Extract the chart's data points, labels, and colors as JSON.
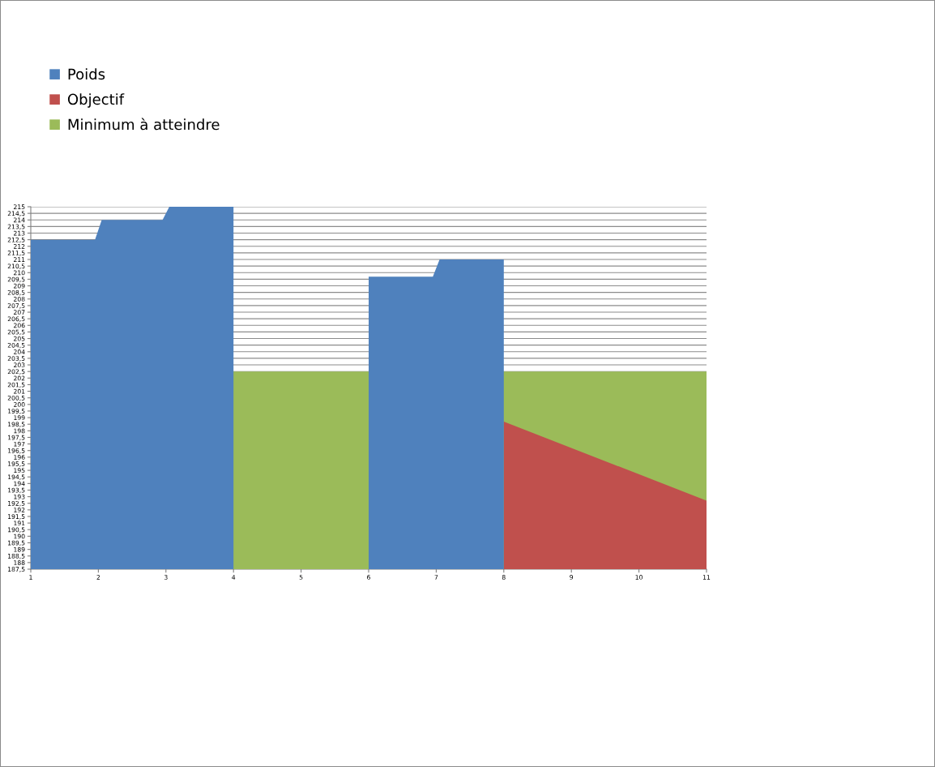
{
  "chart_data": {
    "type": "area",
    "series": [
      {
        "name": "Poids",
        "color": "#4f81bd",
        "x": [
          1,
          1.95,
          2.05,
          2.95,
          3.05,
          4,
          5,
          6,
          6.95,
          7.05,
          8
        ],
        "values": [
          212.5,
          212.5,
          214,
          214,
          215,
          215,
          null,
          209.7,
          209.7,
          211,
          211
        ]
      },
      {
        "name": "Objectif",
        "color": "#c0504d",
        "x": [
          8,
          11
        ],
        "values": [
          198.7,
          192.7
        ]
      },
      {
        "name": "Minimum à atteindre",
        "color": "#9bbb59",
        "x": [
          1,
          11
        ],
        "values": [
          202.5,
          202.5
        ]
      }
    ],
    "xlim": [
      1,
      11
    ],
    "xticks": [
      1,
      2,
      3,
      4,
      5,
      6,
      7,
      8,
      9,
      10,
      11
    ],
    "ylim": [
      187.5,
      215
    ],
    "yticks": [
      {
        "value": 187.5,
        "label": "187,5"
      },
      188,
      {
        "value": 188.5,
        "label": "188,5"
      },
      189,
      {
        "value": 189.5,
        "label": "189,5"
      },
      190,
      {
        "value": 190.5,
        "label": "190,5"
      },
      191,
      {
        "value": 191.5,
        "label": "191,5"
      },
      192,
      {
        "value": 192.5,
        "label": "192,5"
      },
      193,
      {
        "value": 193.5,
        "label": "193,5"
      },
      194,
      {
        "value": 194.5,
        "label": "194,5"
      },
      195,
      {
        "value": 195.5,
        "label": "195,5"
      },
      196,
      {
        "value": 196.5,
        "label": "196,5"
      },
      197,
      {
        "value": 197.5,
        "label": "197,5"
      },
      198,
      {
        "value": 198.5,
        "label": "198,5"
      },
      199,
      {
        "value": 199.5,
        "label": "199,5"
      },
      200,
      {
        "value": 200.5,
        "label": "200,5"
      },
      201,
      {
        "value": 201.5,
        "label": "201,5"
      },
      202,
      {
        "value": 202.5,
        "label": "202,5"
      },
      203,
      {
        "value": 203.5,
        "label": "203,5"
      },
      204,
      {
        "value": 204.5,
        "label": "204,5"
      },
      205,
      {
        "value": 205.5,
        "label": "205,5"
      },
      206,
      {
        "value": 206.5,
        "label": "206,5"
      },
      207,
      {
        "value": 207.5,
        "label": "207,5"
      },
      208,
      {
        "value": 208.5,
        "label": "208,5"
      },
      209,
      {
        "value": 209.5,
        "label": "209,5"
      },
      210,
      {
        "value": 210.5,
        "label": "210,5"
      },
      211,
      {
        "value": 211.5,
        "label": "211,5"
      },
      212,
      {
        "value": 212.5,
        "label": "212,5"
      },
      213,
      {
        "value": 213.5,
        "label": "213,5"
      },
      214,
      {
        "value": 214.5,
        "label": "214,5"
      },
      215
    ],
    "grid": "y",
    "legend": "top left"
  }
}
